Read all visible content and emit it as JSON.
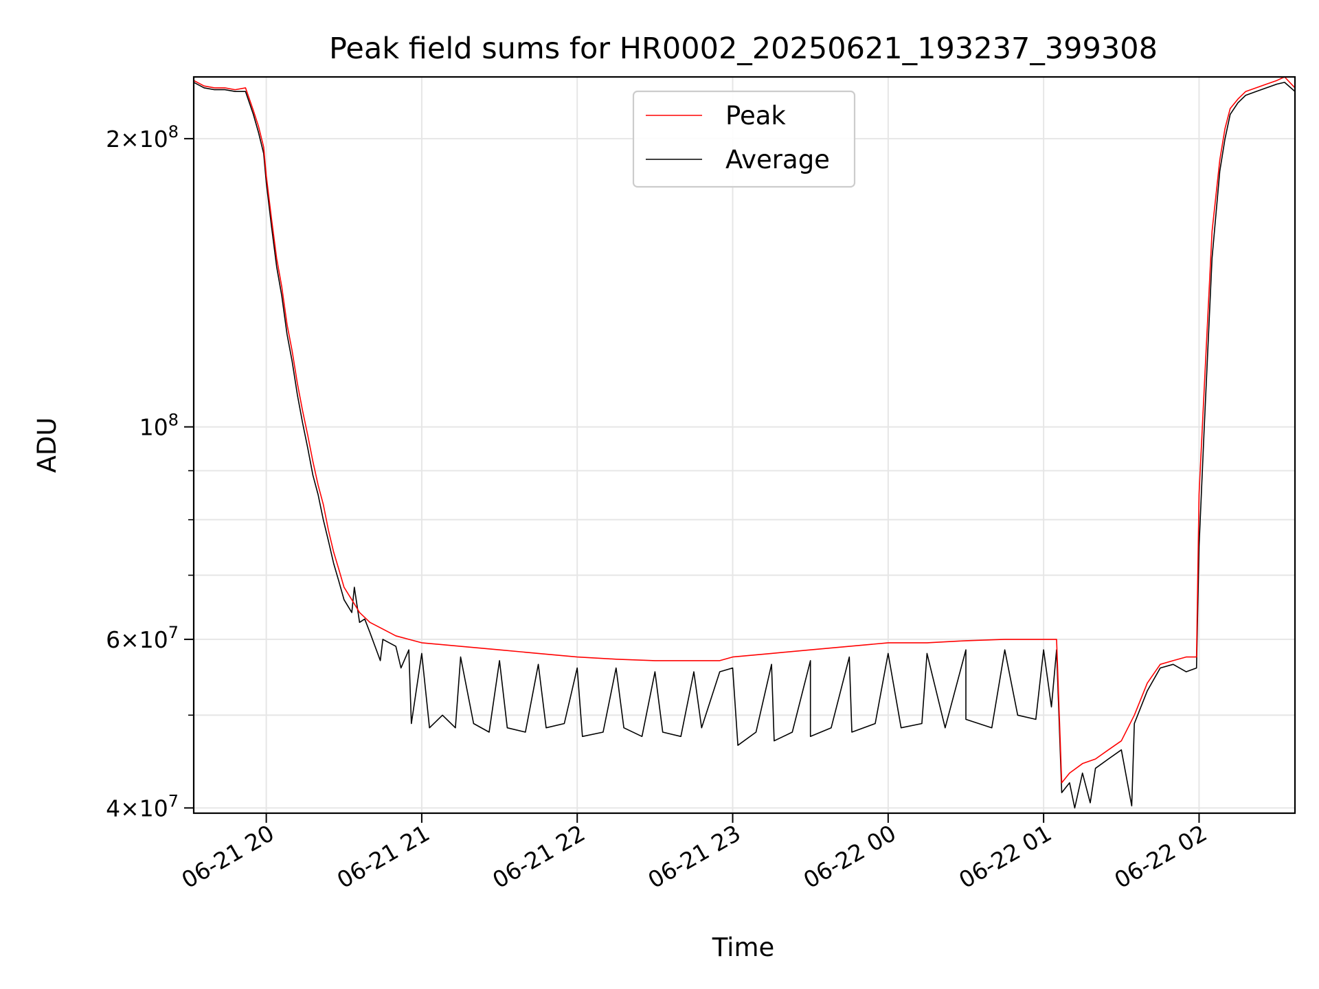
{
  "chart_data": {
    "type": "line",
    "title": "Peak field sums for HR0002_20250621_193237_399308",
    "xlabel": "Time",
    "ylabel": "ADU",
    "yscale": "log",
    "grid": true,
    "legend_position": "upper center",
    "xlim": [
      "2025-06-21 19:32",
      "2025-06-22 02:37"
    ],
    "ylim": [
      39500000,
      232000000
    ],
    "x_ticks": [
      {
        "value": "2025-06-21 20:00",
        "label": "06-21 20"
      },
      {
        "value": "2025-06-21 21:00",
        "label": "06-21 21"
      },
      {
        "value": "2025-06-21 22:00",
        "label": "06-21 22"
      },
      {
        "value": "2025-06-21 23:00",
        "label": "06-21 23"
      },
      {
        "value": "2025-06-22 00:00",
        "label": "06-22 00"
      },
      {
        "value": "2025-06-22 01:00",
        "label": "06-22 01"
      },
      {
        "value": "2025-06-22 02:00",
        "label": "06-22 02"
      }
    ],
    "y_ticks": [
      {
        "value": 40000000,
        "mant": "4",
        "exp": "7"
      },
      {
        "value": 60000000,
        "mant": "6",
        "exp": "7"
      },
      {
        "value": 100000000,
        "mant": "",
        "exp": "8"
      },
      {
        "value": 200000000,
        "mant": "2",
        "exp": "8"
      }
    ],
    "y_minor_ticks": [
      50000000,
      70000000,
      80000000,
      90000000
    ],
    "series": [
      {
        "name": "Peak",
        "color": "#ff0000",
        "x": [
          "2025-06-21 19:32",
          "2025-06-21 19:36",
          "2025-06-21 19:40",
          "2025-06-21 19:44",
          "2025-06-21 19:48",
          "2025-06-21 19:52",
          "2025-06-21 19:55",
          "2025-06-21 19:57",
          "2025-06-21 19:59",
          "2025-06-21 20:00",
          "2025-06-21 20:02",
          "2025-06-21 20:04",
          "2025-06-21 20:06",
          "2025-06-21 20:08",
          "2025-06-21 20:10",
          "2025-06-21 20:12",
          "2025-06-21 20:14",
          "2025-06-21 20:16",
          "2025-06-21 20:18",
          "2025-06-21 20:20",
          "2025-06-21 20:22",
          "2025-06-21 20:24",
          "2025-06-21 20:26",
          "2025-06-21 20:28",
          "2025-06-21 20:30",
          "2025-06-21 20:33",
          "2025-06-21 20:36",
          "2025-06-21 20:40",
          "2025-06-21 20:45",
          "2025-06-21 20:50",
          "2025-06-21 20:55",
          "2025-06-21 21:00",
          "2025-06-21 21:15",
          "2025-06-21 21:30",
          "2025-06-21 21:45",
          "2025-06-21 22:00",
          "2025-06-21 22:15",
          "2025-06-21 22:30",
          "2025-06-21 22:45",
          "2025-06-21 22:55",
          "2025-06-21 23:00",
          "2025-06-21 23:15",
          "2025-06-21 23:30",
          "2025-06-21 23:45",
          "2025-06-22 00:00",
          "2025-06-22 00:15",
          "2025-06-22 00:30",
          "2025-06-22 00:45",
          "2025-06-22 01:00",
          "2025-06-22 01:05",
          "2025-06-22 01:07",
          "2025-06-22 01:10",
          "2025-06-22 01:15",
          "2025-06-22 01:20",
          "2025-06-22 01:25",
          "2025-06-22 01:30",
          "2025-06-22 01:35",
          "2025-06-22 01:40",
          "2025-06-22 01:45",
          "2025-06-22 01:50",
          "2025-06-22 01:55",
          "2025-06-22 01:59",
          "2025-06-22 02:00",
          "2025-06-22 02:02",
          "2025-06-22 02:05",
          "2025-06-22 02:08",
          "2025-06-22 02:10",
          "2025-06-22 02:12",
          "2025-06-22 02:15",
          "2025-06-22 02:18",
          "2025-06-22 02:22",
          "2025-06-22 02:26",
          "2025-06-22 02:30",
          "2025-06-22 02:33",
          "2025-06-22 02:37"
        ],
        "y": [
          230000000,
          227000000,
          226000000,
          226000000,
          225000000,
          226000000,
          214000000,
          206000000,
          196000000,
          183000000,
          165000000,
          150000000,
          140000000,
          128000000,
          120000000,
          111000000,
          104000000,
          98000000,
          92000000,
          87000000,
          83000000,
          78000000,
          74000000,
          71000000,
          68000000,
          66000000,
          64000000,
          62500000,
          61500000,
          60500000,
          60000000,
          59500000,
          59000000,
          58500000,
          58000000,
          57500000,
          57200000,
          57000000,
          57000000,
          57000000,
          57500000,
          58000000,
          58500000,
          59000000,
          59500000,
          59500000,
          59800000,
          60000000,
          60000000,
          60000000,
          42500000,
          43500000,
          44500000,
          45000000,
          46000000,
          47000000,
          50000000,
          54000000,
          56500000,
          57000000,
          57500000,
          57500000,
          85000000,
          110000000,
          160000000,
          190000000,
          205000000,
          215000000,
          220000000,
          224000000,
          226000000,
          228000000,
          230000000,
          232000000,
          226000000
        ],
        "y_dips": []
      },
      {
        "name": "Average",
        "color": "#000000",
        "x": [
          "2025-06-21 19:32",
          "2025-06-21 19:36",
          "2025-06-21 19:40",
          "2025-06-21 19:44",
          "2025-06-21 19:48",
          "2025-06-21 19:52",
          "2025-06-21 19:55",
          "2025-06-21 19:57",
          "2025-06-21 19:59",
          "2025-06-21 20:00",
          "2025-06-21 20:02",
          "2025-06-21 20:04",
          "2025-06-21 20:06",
          "2025-06-21 20:08",
          "2025-06-21 20:10",
          "2025-06-21 20:12",
          "2025-06-21 20:14",
          "2025-06-21 20:16",
          "2025-06-21 20:18",
          "2025-06-21 20:20",
          "2025-06-21 20:22",
          "2025-06-21 20:24",
          "2025-06-21 20:26",
          "2025-06-21 20:28",
          "2025-06-21 20:30",
          "2025-06-21 20:33",
          "2025-06-21 20:36",
          "2025-06-21 20:40",
          "2025-06-21 20:45",
          "2025-06-21 20:50",
          "2025-06-21 20:55",
          "2025-06-21 21:00",
          "2025-06-21 21:15",
          "2025-06-21 21:30",
          "2025-06-21 21:45",
          "2025-06-21 22:00",
          "2025-06-21 22:15",
          "2025-06-21 22:30",
          "2025-06-21 22:45",
          "2025-06-21 22:55",
          "2025-06-21 23:00",
          "2025-06-21 23:15",
          "2025-06-21 23:30",
          "2025-06-21 23:45",
          "2025-06-22 00:00",
          "2025-06-22 00:15",
          "2025-06-22 00:30",
          "2025-06-22 00:45",
          "2025-06-22 01:00",
          "2025-06-22 01:05",
          "2025-06-22 01:07",
          "2025-06-22 01:10",
          "2025-06-22 01:15",
          "2025-06-22 01:20",
          "2025-06-22 01:25",
          "2025-06-22 01:30",
          "2025-06-22 01:35",
          "2025-06-22 01:40",
          "2025-06-22 01:45",
          "2025-06-22 01:50",
          "2025-06-22 01:55",
          "2025-06-22 01:59",
          "2025-06-22 02:00",
          "2025-06-22 02:02",
          "2025-06-22 02:05",
          "2025-06-22 02:08",
          "2025-06-22 02:10",
          "2025-06-22 02:12",
          "2025-06-22 02:15",
          "2025-06-22 02:18",
          "2025-06-22 02:22",
          "2025-06-22 02:26",
          "2025-06-22 02:30",
          "2025-06-22 02:33",
          "2025-06-22 02:37"
        ],
        "y": [
          229000000,
          226000000,
          225000000,
          225000000,
          224000000,
          224000000,
          212000000,
          203000000,
          193000000,
          180000000,
          162000000,
          147000000,
          137000000,
          125000000,
          117000000,
          108000000,
          101000000,
          95000000,
          89000000,
          85000000,
          80000000,
          76000000,
          72000000,
          69000000,
          66000000,
          64000000,
          62500000,
          61000000,
          60000000,
          59000000,
          58500000,
          58000000,
          57500000,
          57000000,
          56500000,
          56000000,
          56000000,
          55500000,
          55500000,
          55500000,
          56000000,
          56500000,
          57000000,
          57500000,
          58000000,
          58000000,
          58500000,
          58500000,
          58500000,
          58500000,
          41500000,
          42500000,
          43500000,
          44000000,
          45000000,
          46000000,
          49000000,
          53000000,
          56000000,
          56500000,
          55500000,
          56000000,
          75000000,
          100000000,
          150000000,
          185000000,
          200000000,
          212000000,
          218000000,
          222000000,
          224000000,
          226000000,
          228000000,
          229000000,
          224000000
        ],
        "dips": [
          {
            "x": "2025-06-21 20:34",
            "y": 68000000
          },
          {
            "x": "2025-06-21 20:38",
            "y": 63000000
          },
          {
            "x": "2025-06-21 20:44",
            "y": 57000000
          },
          {
            "x": "2025-06-21 20:52",
            "y": 56000000
          },
          {
            "x": "2025-06-21 20:56",
            "y": 49000000
          },
          {
            "x": "2025-06-21 21:03",
            "y": 48500000
          },
          {
            "x": "2025-06-21 21:08",
            "y": 50000000
          },
          {
            "x": "2025-06-21 21:13",
            "y": 48500000
          },
          {
            "x": "2025-06-21 21:20",
            "y": 49000000
          },
          {
            "x": "2025-06-21 21:26",
            "y": 48000000
          },
          {
            "x": "2025-06-21 21:33",
            "y": 48500000
          },
          {
            "x": "2025-06-21 21:40",
            "y": 48000000
          },
          {
            "x": "2025-06-21 21:48",
            "y": 48500000
          },
          {
            "x": "2025-06-21 21:55",
            "y": 49000000
          },
          {
            "x": "2025-06-21 22:02",
            "y": 47500000
          },
          {
            "x": "2025-06-21 22:10",
            "y": 48000000
          },
          {
            "x": "2025-06-21 22:18",
            "y": 48500000
          },
          {
            "x": "2025-06-21 22:25",
            "y": 47500000
          },
          {
            "x": "2025-06-21 22:33",
            "y": 48000000
          },
          {
            "x": "2025-06-21 22:40",
            "y": 47500000
          },
          {
            "x": "2025-06-21 22:48",
            "y": 48500000
          },
          {
            "x": "2025-06-21 23:02",
            "y": 46500000
          },
          {
            "x": "2025-06-21 23:09",
            "y": 48000000
          },
          {
            "x": "2025-06-21 23:16",
            "y": 47000000
          },
          {
            "x": "2025-06-21 23:23",
            "y": 48000000
          },
          {
            "x": "2025-06-21 23:30",
            "y": 47500000
          },
          {
            "x": "2025-06-21 23:38",
            "y": 48500000
          },
          {
            "x": "2025-06-21 23:46",
            "y": 48000000
          },
          {
            "x": "2025-06-21 23:55",
            "y": 49000000
          },
          {
            "x": "2025-06-22 00:05",
            "y": 48500000
          },
          {
            "x": "2025-06-22 00:13",
            "y": 49000000
          },
          {
            "x": "2025-06-22 00:22",
            "y": 48500000
          },
          {
            "x": "2025-06-22 00:30",
            "y": 49500000
          },
          {
            "x": "2025-06-22 00:40",
            "y": 48500000
          },
          {
            "x": "2025-06-22 00:50",
            "y": 50000000
          },
          {
            "x": "2025-06-22 00:57",
            "y": 49500000
          },
          {
            "x": "2025-06-22 01:03",
            "y": 51000000
          },
          {
            "x": "2025-06-22 01:12",
            "y": 40000000
          },
          {
            "x": "2025-06-22 01:18",
            "y": 40500000
          },
          {
            "x": "2025-06-22 01:34",
            "y": 40200000
          }
        ]
      }
    ]
  }
}
